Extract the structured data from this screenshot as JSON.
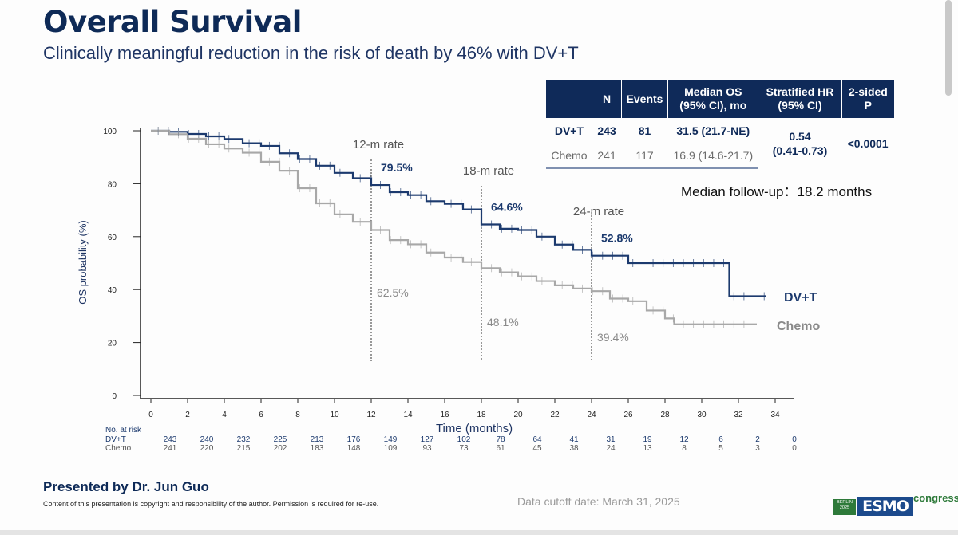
{
  "header": {
    "title": "Overall Survival",
    "subtitle": "Clinically meaningful reduction in the risk of death by 46% with DV+T"
  },
  "colors": {
    "dv_t": "#1c3a6e",
    "chemo": "#a8a8a8",
    "header_bg": "#0f2a59"
  },
  "table": {
    "headers": [
      "",
      "N",
      "Events",
      "Median OS (95% CI), mo",
      "Stratified HR (95% CI)",
      "2-sided P"
    ],
    "rows": [
      {
        "arm": "DV+T",
        "n": "243",
        "events": "81",
        "median": "31.5 (21.7-NE)"
      },
      {
        "arm": "Chemo",
        "n": "241",
        "events": "117",
        "median": "16.9 (14.6-21.7)"
      }
    ],
    "hr": "0.54",
    "hr_ci": "(0.41-0.73)",
    "p": "<0.0001"
  },
  "followup": "Median follow-up：18.2 months",
  "chart_data": {
    "type": "line",
    "ylabel": "OS probability (%)",
    "xlabel": "Time (months)",
    "xlim": [
      0,
      34
    ],
    "ylim": [
      0,
      100
    ],
    "x_ticks": [
      "0",
      "2",
      "4",
      "6",
      "8",
      "10",
      "12",
      "14",
      "16",
      "18",
      "20",
      "22",
      "24",
      "26",
      "28",
      "30",
      "32",
      "34"
    ],
    "y_ticks": [
      "0",
      "20",
      "40",
      "60",
      "80",
      "100"
    ],
    "series": [
      {
        "name": "DV+T",
        "color": "#1c3a6e",
        "points": [
          [
            0,
            100
          ],
          [
            1,
            99.6
          ],
          [
            2,
            98.8
          ],
          [
            3,
            97.9
          ],
          [
            4,
            96.9
          ],
          [
            5,
            95.3
          ],
          [
            6,
            94.3
          ],
          [
            7,
            91.5
          ],
          [
            8,
            89.3
          ],
          [
            9,
            86.8
          ],
          [
            10,
            84.1
          ],
          [
            11,
            82.1
          ],
          [
            12,
            79.5
          ],
          [
            13,
            76.8
          ],
          [
            14,
            75.7
          ],
          [
            15,
            73.4
          ],
          [
            16,
            72.4
          ],
          [
            17,
            70.3
          ],
          [
            18,
            64.6
          ],
          [
            19,
            63
          ],
          [
            20,
            62.5
          ],
          [
            21,
            60
          ],
          [
            22,
            57
          ],
          [
            23,
            55
          ],
          [
            24,
            52.8
          ],
          [
            25,
            52.8
          ],
          [
            26,
            50
          ],
          [
            27,
            50
          ],
          [
            28,
            50
          ],
          [
            29,
            50
          ],
          [
            30,
            50
          ],
          [
            31.5,
            50
          ],
          [
            31.5,
            37.5
          ],
          [
            33.5,
            37.5
          ]
        ]
      },
      {
        "name": "Chemo",
        "color": "#a8a8a8",
        "points": [
          [
            0,
            100
          ],
          [
            1,
            98.7
          ],
          [
            2,
            97
          ],
          [
            3,
            94.9
          ],
          [
            4,
            93.3
          ],
          [
            5,
            91.7
          ],
          [
            6,
            88.3
          ],
          [
            7,
            84.9
          ],
          [
            8,
            78.3
          ],
          [
            9,
            72.6
          ],
          [
            10,
            68.4
          ],
          [
            11,
            65.6
          ],
          [
            12,
            62.5
          ],
          [
            13,
            58.7
          ],
          [
            14,
            57.1
          ],
          [
            15,
            54
          ],
          [
            16,
            52.1
          ],
          [
            17,
            50.4
          ],
          [
            18,
            48.1
          ],
          [
            19,
            46.5
          ],
          [
            20,
            45
          ],
          [
            21,
            43.2
          ],
          [
            22,
            41.6
          ],
          [
            23,
            40.4
          ],
          [
            24,
            39.4
          ],
          [
            25,
            36.6
          ],
          [
            26,
            35.6
          ],
          [
            27,
            32.1
          ],
          [
            28,
            29.1
          ],
          [
            28.5,
            26.9
          ],
          [
            30,
            26.9
          ],
          [
            32,
            26.9
          ],
          [
            33,
            26.9
          ]
        ]
      }
    ],
    "landmarks": [
      {
        "label": "12-m rate",
        "month": 12,
        "dv_t": "79.5%",
        "chemo": "62.5%"
      },
      {
        "label": "18-m rate",
        "month": 18,
        "dv_t": "64.6%",
        "chemo": "48.1%"
      },
      {
        "label": "24-m rate",
        "month": 24,
        "dv_t": "52.8%",
        "chemo": "39.4%"
      }
    ],
    "at_risk": {
      "label": "No. at risk",
      "rows": [
        {
          "arm": "DV+T",
          "values": [
            "243",
            "240",
            "232",
            "225",
            "213",
            "176",
            "149",
            "127",
            "102",
            "78",
            "64",
            "41",
            "31",
            "19",
            "12",
            "6",
            "2",
            "0"
          ]
        },
        {
          "arm": "Chemo",
          "values": [
            "241",
            "220",
            "215",
            "202",
            "183",
            "148",
            "109",
            "93",
            "73",
            "61",
            "45",
            "38",
            "24",
            "13",
            "8",
            "5",
            "3",
            "0"
          ]
        }
      ]
    },
    "legend": {
      "dv_t": "DV+T",
      "chemo": "Chemo"
    }
  },
  "footer": {
    "presenter": "Presented by Dr. Jun Guo",
    "copyright": "Content of this presentation is copyright and responsibility of the author. Permission is required for re-use.",
    "cutoff": "Data cutoff date: March 31, 2025",
    "logo": {
      "year": "BERLIN 2025",
      "brand": "ESMO",
      "suffix": "congress"
    }
  }
}
